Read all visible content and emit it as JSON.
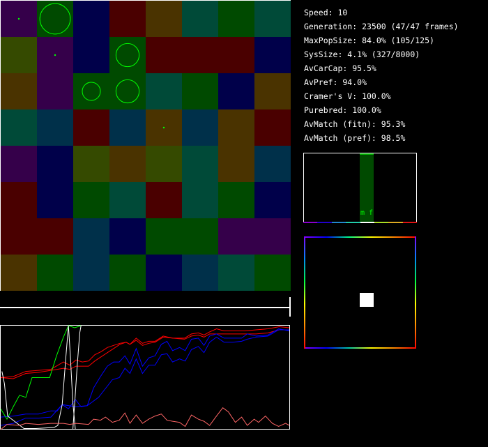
{
  "stats": {
    "speed": "Speed: 10",
    "generation": "Generation: 23500 (47/47 frames)",
    "max_pop_size": "MaxPopSize: 84.0% (105/125)",
    "sys_size": "SysSize: 4.1% (327/8000)",
    "av_car_cap": "AvCarCap: 95.5%",
    "av_pref": "AvPref: 94.0%",
    "cramers_v": "Cramer's V: 100.0%",
    "purebred": "Purebred: 100.0%",
    "av_match_fitn": "AvMatch (fitn): 95.3%",
    "av_match_pref": "AvMatch (pref): 98.5%"
  },
  "preference_histogram": {
    "sex_labels": "m f",
    "bar_color": "#004a00",
    "label_color": "#00ff00",
    "axis_colors": [
      "#8800cc",
      "#2200cc",
      "#2288cc",
      "#22ccaa",
      "#ffffff",
      "#aadd22",
      "#ddaa22",
      "#dd1111"
    ],
    "active_bin": 4,
    "bin_count": 8
  },
  "color_wheel": {
    "marker_color": "#ffffff"
  },
  "world": {
    "palette": {
      "P": "#35004a",
      "G": "#004a00",
      "N": "#00004a",
      "M": "#4a0000",
      "B": "#4a3300",
      "T": "#004a38",
      "O": "#354a00",
      "C": "#00304a"
    },
    "grid": [
      "PGNMBTGT",
      "OPNGMMMN",
      "BPGGTGNB",
      "TCMCBCBM",
      "PNOBOTBC",
      "MNGTMTGN",
      "MMCNGGPP",
      "BGCGNCTG"
    ],
    "population_color": "#00ff00",
    "populations": [
      {
        "row": 0,
        "col": 0,
        "size": 0.04
      },
      {
        "row": 0,
        "col": 1,
        "size": 0.84
      },
      {
        "row": 1,
        "col": 1,
        "size": 0.04
      },
      {
        "row": 1,
        "col": 3,
        "size": 0.64
      },
      {
        "row": 2,
        "col": 2,
        "size": 0.5
      },
      {
        "row": 2,
        "col": 3,
        "size": 0.64
      },
      {
        "row": 3,
        "col": 4,
        "size": 0.04
      }
    ]
  },
  "chart_data": {
    "type": "line",
    "xlim": [
      0,
      46
    ],
    "ylim": [
      0,
      1
    ],
    "grid": false,
    "series": [
      {
        "color": "#ff0000",
        "points": [
          [
            0,
            0.5
          ],
          [
            2,
            0.51
          ],
          [
            4,
            0.56
          ],
          [
            6,
            0.57
          ],
          [
            8,
            0.58
          ],
          [
            10,
            0.65
          ],
          [
            11,
            0.62
          ],
          [
            12,
            0.67
          ],
          [
            13,
            0.65
          ],
          [
            14,
            0.66
          ],
          [
            15,
            0.72
          ],
          [
            16,
            0.75
          ],
          [
            17,
            0.79
          ],
          [
            18,
            0.81
          ],
          [
            19,
            0.83
          ],
          [
            20,
            0.84
          ],
          [
            20.6,
            0.82
          ],
          [
            21.6,
            0.88
          ],
          [
            22.6,
            0.83
          ],
          [
            23.6,
            0.85
          ],
          [
            24.6,
            0.85
          ],
          [
            25.9,
            0.9
          ],
          [
            27.4,
            0.88
          ],
          [
            29.3,
            0.88
          ],
          [
            30.4,
            0.92
          ],
          [
            31.5,
            0.93
          ],
          [
            32.4,
            0.91
          ],
          [
            33.3,
            0.94
          ],
          [
            34.4,
            0.97
          ],
          [
            35.6,
            0.95
          ],
          [
            37,
            0.95
          ],
          [
            38.9,
            0.95
          ],
          [
            40.7,
            0.96
          ],
          [
            42.6,
            0.97
          ],
          [
            44.4,
            0.99
          ],
          [
            46,
            0.98
          ]
        ]
      },
      {
        "color": "#ff0000",
        "points": [
          [
            0,
            0.5
          ],
          [
            2,
            0.49
          ],
          [
            4,
            0.54
          ],
          [
            6,
            0.55
          ],
          [
            8,
            0.57
          ],
          [
            10,
            0.59
          ],
          [
            11,
            0.58
          ],
          [
            12,
            0.61
          ],
          [
            13,
            0.61
          ],
          [
            14,
            0.61
          ],
          [
            15,
            0.66
          ],
          [
            16,
            0.7
          ],
          [
            17,
            0.74
          ],
          [
            18,
            0.78
          ],
          [
            19,
            0.82
          ],
          [
            20,
            0.84
          ],
          [
            20.6,
            0.82
          ],
          [
            21.6,
            0.86
          ],
          [
            22.6,
            0.81
          ],
          [
            23.6,
            0.83
          ],
          [
            24.6,
            0.84
          ],
          [
            25.9,
            0.89
          ],
          [
            27.4,
            0.88
          ],
          [
            29.3,
            0.87
          ],
          [
            30.4,
            0.9
          ],
          [
            31.5,
            0.91
          ],
          [
            32.4,
            0.89
          ],
          [
            33.3,
            0.92
          ],
          [
            34.4,
            0.92
          ],
          [
            35.6,
            0.92
          ],
          [
            37,
            0.92
          ],
          [
            38.9,
            0.92
          ],
          [
            40.7,
            0.92
          ],
          [
            42.6,
            0.93
          ],
          [
            44.4,
            0.96
          ],
          [
            46,
            0.96
          ]
        ]
      },
      {
        "color": "#0000ff",
        "points": [
          [
            0,
            0.12
          ],
          [
            2,
            0.13
          ],
          [
            4,
            0.15
          ],
          [
            6,
            0.15
          ],
          [
            8,
            0.18
          ],
          [
            9,
            0.18
          ],
          [
            9.8,
            0.24
          ],
          [
            10.8,
            0.2
          ],
          [
            11.9,
            0.29
          ],
          [
            12.8,
            0.22
          ],
          [
            13.8,
            0.23
          ],
          [
            14.8,
            0.4
          ],
          [
            15.9,
            0.51
          ],
          [
            17,
            0.61
          ],
          [
            18,
            0.65
          ],
          [
            18.9,
            0.65
          ],
          [
            19.8,
            0.71
          ],
          [
            20.6,
            0.63
          ],
          [
            21.6,
            0.78
          ],
          [
            22.6,
            0.61
          ],
          [
            23.6,
            0.69
          ],
          [
            24.6,
            0.71
          ],
          [
            25.6,
            0.82
          ],
          [
            26.5,
            0.85
          ],
          [
            27.4,
            0.76
          ],
          [
            28.5,
            0.79
          ],
          [
            29.4,
            0.76
          ],
          [
            30.4,
            0.87
          ],
          [
            31.5,
            0.88
          ],
          [
            32.4,
            0.81
          ],
          [
            33.3,
            0.9
          ],
          [
            34.4,
            0.92
          ],
          [
            35.6,
            0.88
          ],
          [
            37,
            0.88
          ],
          [
            38.4,
            0.88
          ],
          [
            39.3,
            0.92
          ],
          [
            40.7,
            0.9
          ],
          [
            42.6,
            0.91
          ],
          [
            44.3,
            0.97
          ],
          [
            46,
            0.95
          ]
        ]
      },
      {
        "color": "#0000ff",
        "points": [
          [
            0,
            0.04
          ],
          [
            2,
            0.06
          ],
          [
            4,
            0.11
          ],
          [
            6,
            0.11
          ],
          [
            8,
            0.12
          ],
          [
            9.8,
            0.24
          ],
          [
            11.9,
            0.22
          ],
          [
            13.8,
            0.23
          ],
          [
            15.6,
            0.31
          ],
          [
            17.8,
            0.48
          ],
          [
            18.9,
            0.5
          ],
          [
            19.8,
            0.59
          ],
          [
            20.6,
            0.54
          ],
          [
            21.6,
            0.68
          ],
          [
            22.6,
            0.54
          ],
          [
            23.6,
            0.62
          ],
          [
            24.6,
            0.62
          ],
          [
            25.6,
            0.72
          ],
          [
            26.5,
            0.73
          ],
          [
            27.4,
            0.65
          ],
          [
            28.5,
            0.68
          ],
          [
            29.4,
            0.66
          ],
          [
            30.4,
            0.77
          ],
          [
            31.5,
            0.8
          ],
          [
            32.4,
            0.74
          ],
          [
            33.3,
            0.84
          ],
          [
            34.4,
            0.89
          ],
          [
            35.6,
            0.84
          ],
          [
            37,
            0.84
          ],
          [
            38.4,
            0.85
          ],
          [
            39.3,
            0.87
          ],
          [
            40.7,
            0.89
          ],
          [
            42.6,
            0.9
          ],
          [
            44.3,
            0.96
          ],
          [
            46,
            0.96
          ]
        ]
      },
      {
        "color": "#00ff00",
        "points": [
          [
            0,
            0.2
          ],
          [
            1,
            0.1
          ],
          [
            2,
            0.22
          ],
          [
            3,
            0.33
          ],
          [
            4,
            0.31
          ],
          [
            5,
            0.5
          ],
          [
            6,
            0.5
          ],
          [
            7.8,
            0.5
          ],
          [
            8.9,
            0.71
          ],
          [
            10,
            0.89
          ],
          [
            10.8,
            1.0
          ],
          [
            11.8,
            0.98
          ],
          [
            12.8,
            1.0
          ]
        ]
      },
      {
        "color": "#ffffff",
        "points": [
          [
            0.2,
            0.56
          ],
          [
            0.6,
            0.44
          ],
          [
            1.1,
            0.13
          ],
          [
            2.2,
            0.08
          ],
          [
            3.7,
            0.01
          ],
          [
            5.6,
            0.01
          ],
          [
            8.5,
            0.02
          ],
          [
            9.1,
            0.04
          ],
          [
            9.8,
            0.24
          ],
          [
            10.4,
            0.71
          ],
          [
            10.8,
            1.0
          ],
          [
            11.1,
            0.71
          ],
          [
            11.5,
            0.26
          ],
          [
            11.9,
            0
          ]
        ]
      },
      {
        "color": "#ffffff",
        "points": [
          [
            11.5,
            0
          ],
          [
            11.8,
            0.26
          ],
          [
            12.2,
            0.62
          ],
          [
            12.6,
            0.93
          ],
          [
            12.8,
            1.0
          ]
        ]
      },
      {
        "color": "#ff6666",
        "points": [
          [
            0,
            0
          ],
          [
            1,
            0.05
          ],
          [
            3,
            0.04
          ],
          [
            4,
            0.06
          ],
          [
            6,
            0.05
          ],
          [
            8,
            0.06
          ],
          [
            10,
            0.06
          ],
          [
            11,
            0.05
          ],
          [
            12,
            0.06
          ],
          [
            14,
            0.05
          ],
          [
            14.8,
            0.1
          ],
          [
            15.9,
            0.09
          ],
          [
            16.7,
            0.12
          ],
          [
            17.8,
            0.07
          ],
          [
            18.9,
            0.09
          ],
          [
            19.8,
            0.16
          ],
          [
            20.6,
            0.06
          ],
          [
            21.6,
            0.14
          ],
          [
            22.6,
            0.06
          ],
          [
            23.6,
            0.1
          ],
          [
            24.6,
            0.13
          ],
          [
            25.6,
            0.15
          ],
          [
            26.5,
            0.09
          ],
          [
            27.4,
            0.08
          ],
          [
            28.5,
            0.07
          ],
          [
            29.4,
            0.03
          ],
          [
            30.4,
            0.14
          ],
          [
            31.5,
            0.1
          ],
          [
            32.4,
            0.08
          ],
          [
            33.3,
            0.04
          ],
          [
            34.4,
            0.13
          ],
          [
            35.4,
            0.21
          ],
          [
            36.3,
            0.17
          ],
          [
            37.4,
            0.07
          ],
          [
            38.4,
            0.12
          ],
          [
            39.3,
            0.04
          ],
          [
            40.4,
            0.1
          ],
          [
            41.1,
            0.07
          ],
          [
            42.2,
            0.13
          ],
          [
            43.3,
            0.06
          ],
          [
            44.3,
            0.03
          ],
          [
            45.4,
            0.06
          ],
          [
            46,
            0.04
          ]
        ]
      }
    ]
  }
}
